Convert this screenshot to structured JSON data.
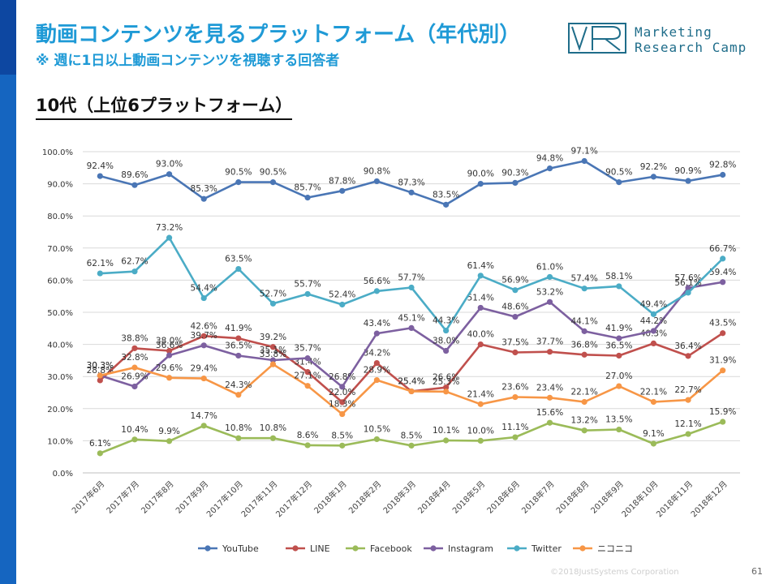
{
  "header": {
    "title": "動画コンテンツを見るプラットフォーム（年代別）",
    "subtitle": "※ 週に1日以上動画コンテンツを視聴する回答者",
    "logo_line1": "Marketing",
    "logo_line2": "Research Camp"
  },
  "section": {
    "title": "10代（上位6プラットフォーム）"
  },
  "footer": {
    "copyright": "©2018JustSystems Corporation",
    "page": "61"
  },
  "colors": {
    "title": "#1f9ad6",
    "YouTube": "#4a76b5",
    "LINE": "#c0504d",
    "Facebook": "#9bbb59",
    "Instagram": "#7d60a0",
    "Twitter": "#4bacc6",
    "niconico": "#f79646"
  },
  "chart_data": {
    "type": "line",
    "categories": [
      "2017年6月",
      "2017年7月",
      "2017年8月",
      "2017年9月",
      "2017年10月",
      "2017年11月",
      "2017年12月",
      "2018年1月",
      "2018年2月",
      "2018年3月",
      "2018年4月",
      "2018年5月",
      "2018年6月",
      "2018年7月",
      "2018年8月",
      "2018年9月",
      "2018年10月",
      "2018年11月",
      "2018年12月"
    ],
    "ylim": [
      0,
      100
    ],
    "yticks": [
      "0.0%",
      "10.0%",
      "20.0%",
      "30.0%",
      "40.0%",
      "50.0%",
      "60.0%",
      "70.0%",
      "80.0%",
      "90.0%",
      "100.0%"
    ],
    "grid": true,
    "legend": "bottom",
    "series": [
      {
        "name": "YouTube",
        "values": [
          92.4,
          89.6,
          93.0,
          85.3,
          90.5,
          90.5,
          85.7,
          87.8,
          90.8,
          87.3,
          83.5,
          90.0,
          90.3,
          94.8,
          97.1,
          90.5,
          92.2,
          90.9,
          92.8
        ]
      },
      {
        "name": "LINE",
        "values": [
          28.8,
          38.8,
          38.0,
          42.6,
          41.9,
          39.2,
          31.4,
          22.0,
          34.2,
          25.4,
          26.6,
          40.0,
          37.5,
          37.7,
          36.8,
          36.5,
          40.3,
          36.4,
          43.5
        ]
      },
      {
        "name": "Facebook",
        "values": [
          6.1,
          10.4,
          9.9,
          14.7,
          10.8,
          10.8,
          8.6,
          8.5,
          10.5,
          8.5,
          10.1,
          10.0,
          11.1,
          15.6,
          13.2,
          13.5,
          9.1,
          12.1,
          15.9
        ]
      },
      {
        "name": "Instagram",
        "values": [
          30.3,
          26.9,
          36.6,
          39.7,
          36.5,
          35.1,
          35.7,
          26.8,
          43.4,
          45.1,
          38.0,
          51.4,
          48.6,
          53.2,
          44.1,
          41.9,
          44.2,
          57.6,
          59.4
        ]
      },
      {
        "name": "Twitter",
        "values": [
          62.1,
          62.7,
          73.2,
          54.4,
          63.5,
          52.7,
          55.7,
          52.4,
          56.6,
          57.7,
          44.3,
          61.4,
          56.9,
          61.0,
          57.4,
          58.1,
          49.4,
          56.1,
          66.7
        ]
      },
      {
        "name": "ニコニコ",
        "values": [
          30.3,
          32.8,
          29.6,
          29.4,
          24.3,
          33.8,
          27.1,
          18.3,
          28.9,
          25.4,
          25.3,
          21.4,
          23.6,
          23.4,
          22.1,
          27.0,
          22.1,
          22.7,
          31.9
        ]
      }
    ]
  }
}
